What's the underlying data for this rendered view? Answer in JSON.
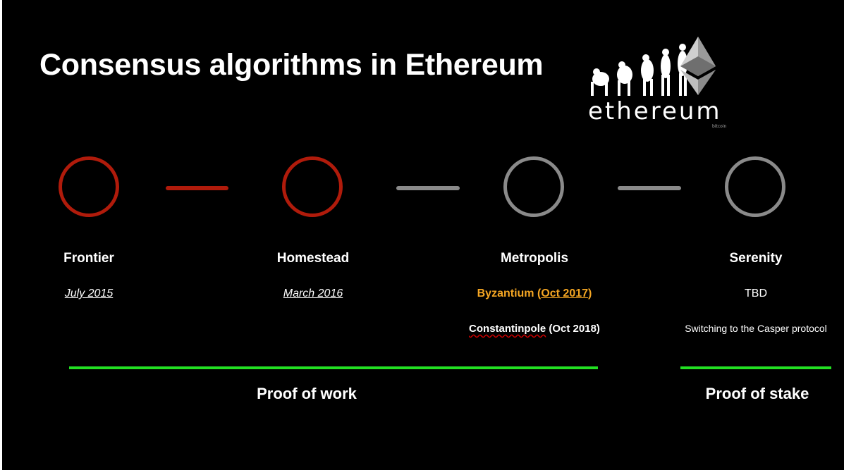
{
  "title": "Consensus algorithms in Ethereum",
  "logo": {
    "word": "ethereum",
    "small": "bitcoin"
  },
  "colors": {
    "active": "#b01b0b",
    "inactive": "#8a8a8a",
    "era": "#22e022",
    "highlight": "#f5a623"
  },
  "stages": [
    {
      "name": "Frontier",
      "date": "July 2015",
      "status": "active"
    },
    {
      "name": "Homestead",
      "date": "March 2016",
      "status": "active"
    },
    {
      "name": "Metropolis",
      "date_label": "Byzantium",
      "date_paren_open": "(",
      "date_paren_value": "Oct 2017",
      "date_paren_close": ")",
      "sub_name": "Constantinpole",
      "sub_date": "(Oct 2018)",
      "status": "inactive"
    },
    {
      "name": "Serenity",
      "date": "TBD",
      "sub": "Switching to the Casper protocol",
      "status": "inactive"
    }
  ],
  "eras": [
    {
      "label": "Proof of work"
    },
    {
      "label": "Proof of stake"
    }
  ]
}
